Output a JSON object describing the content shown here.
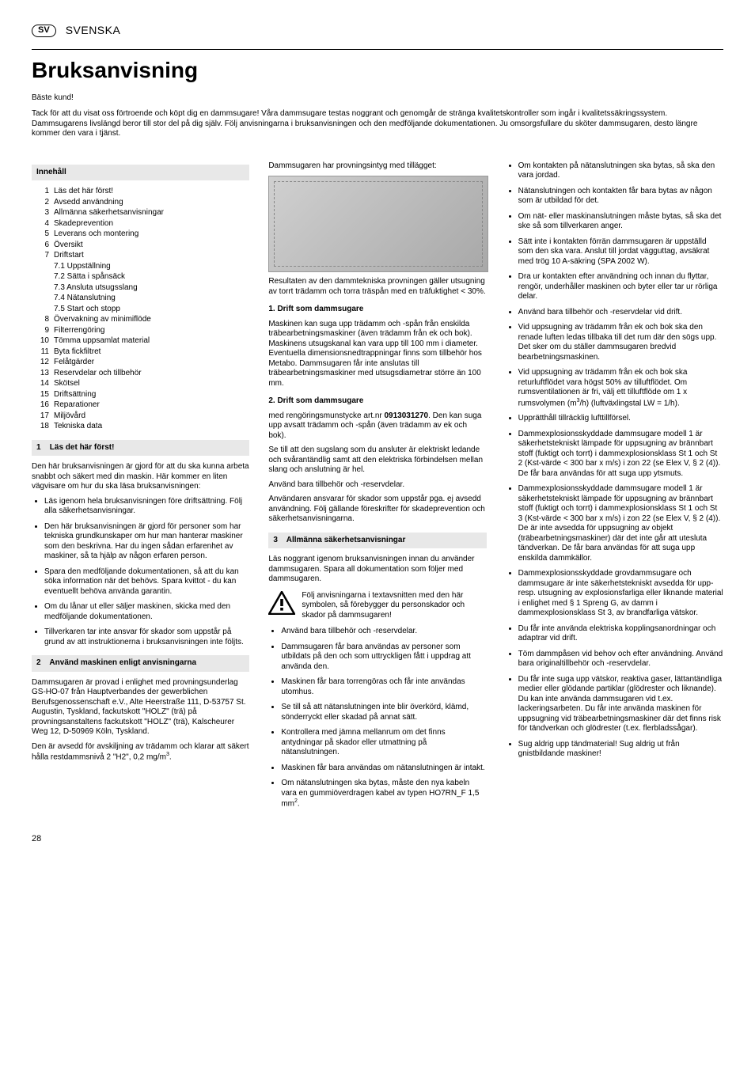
{
  "lang_code": "SV",
  "lang_label": "SVENSKA",
  "title": "Bruksanvisning",
  "greeting": "Bäste kund!",
  "intro": "Tack för att du visat oss förtroende och köpt dig en dammsugare! Våra dammsugare testas noggrant och genomgår de stränga kvalitetskontroller som ingår i kvalitetssäkringssystem. Dammsugarens livslängd beror till stor del på dig själv. Följ anvisningarna i bruksanvisningen och den medföljande dokumentationen. Ju omsorgsfullare du sköter dammsugaren, desto längre kommer den vara i tjänst.",
  "toc_header": "Innehåll",
  "toc": [
    {
      "n": "1",
      "l": "Läs det här först!"
    },
    {
      "n": "2",
      "l": "Avsedd användning"
    },
    {
      "n": "3",
      "l": "Allmänna säkerhetsanvisningar"
    },
    {
      "n": "4",
      "l": "Skadeprevention"
    },
    {
      "n": "5",
      "l": "Leverans och montering"
    },
    {
      "n": "6",
      "l": "Översikt"
    },
    {
      "n": "7",
      "l": "Driftstart"
    }
  ],
  "toc_sub7": [
    {
      "n": "7.1",
      "l": "Uppställning"
    },
    {
      "n": "7.2",
      "l": "Sätta i spånsäck"
    },
    {
      "n": "7.3",
      "l": "Ansluta utsugsslang"
    },
    {
      "n": "7.4",
      "l": "Nätanslutning"
    },
    {
      "n": "7.5",
      "l": "Start och stopp"
    }
  ],
  "toc2": [
    {
      "n": "8",
      "l": "Övervakning av minimiflöde"
    },
    {
      "n": "9",
      "l": "Filterrengöring"
    },
    {
      "n": "10",
      "l": "Tömma uppsamlat material"
    },
    {
      "n": "11",
      "l": "Byta fickfiltret"
    },
    {
      "n": "12",
      "l": "Felåtgärder"
    },
    {
      "n": "13",
      "l": "Reservdelar och tillbehör"
    },
    {
      "n": "14",
      "l": "Skötsel"
    },
    {
      "n": "15",
      "l": "Driftsättning"
    },
    {
      "n": "16",
      "l": "Reparationer"
    },
    {
      "n": "17",
      "l": "Miljövård"
    },
    {
      "n": "18",
      "l": "Tekniska data"
    }
  ],
  "s1_title": "Läs det här först!",
  "s1_p1": "Den här bruksanvisningen är gjord för att du ska kunna arbeta snabbt och säkert med din maskin. Här kommer en liten vägvisare om hur du ska läsa bruksanvisningen:",
  "s1_bullets": [
    "Läs igenom hela bruksanvisningen före driftsättning. Följ alla säkerhetsanvisningar.",
    "Den här bruksanvisningen är gjord för personer som har tekniska grundkunskaper om hur man hanterar maskiner som den beskrivna. Har du ingen sådan erfarenhet av maskiner, så ta hjälp av någon erfaren person.",
    "Spara den medföljande dokumentationen, så att du kan söka information när det behövs. Spara kvittot - du kan eventuellt behöva använda garantin.",
    "Om du lånar ut eller säljer maskinen, skicka med den medföljande dokumentationen.",
    "Tillverkaren tar inte ansvar för skador som uppstår på grund av att instruktionerna i bruksanvisningen inte följts."
  ],
  "s2_title": "Använd maskinen enligt anvisningarna",
  "s2_p1": "Dammsugaren är provad i enlighet med provningsunderlag GS-HO-07 från Hauptverbandes der gewerblichen Berufsgenossenschaft e.V., Alte Heerstraße 111, D-53757 St. Augustin, Tyskland, fackutskott \"HOLZ\" (trä) på provningsanstaltens fackutskott \"HOLZ\" (trä), Kalscheurer Weg 12, D-50969 Köln, Tyskland.",
  "s2_p2_a": "Den är avsedd för avskiljning av trädamm och klarar att säkert hålla restdammsnivå 2 \"H2\", 0,2 mg/m",
  "s2_p2_b": ".",
  "c2_p1": "Dammsugaren har provningsintyg med tillägget:",
  "c2_p2": "Resultaten av den dammtekniska provningen gäller utsugning av torrt trädamm och torra träspån med en träfuktighet < 30%.",
  "c2_h1": "1. Drift som dammsugare",
  "c2_p3": "Maskinen kan suga upp trädamm och -spån från enskilda träbearbetningsmaskiner (även trädamm från ek och bok). Maskinens utsugskanal kan vara upp till 100 mm i diameter. Eventuella dimensionsnedtrappningar finns som tillbehör hos Metabo. Dammsugaren får inte anslutas till träbearbetningsmaskiner med utsugsdiametrar större än 100 mm.",
  "c2_h2": "2. Drift som dammsugare",
  "c2_p4_a": "med rengöringsmunstycke art.nr ",
  "c2_p4_bold": "0913031270",
  "c2_p4_b": ". Den kan suga upp avsatt trädamm och -spån (även trädamm av ek och bok).",
  "c2_p5": "Se till att den sugslang som du ansluter är elektriskt ledande och svårantändlig samt att den elektriska förbindelsen mellan slang och anslutning är hel.",
  "c2_p6": "Använd bara tillbehör och -reservdelar.",
  "c2_p7": "Användaren ansvarar för skador som uppstår pga. ej avsedd användning. Följ gällande föreskrifter för skadeprevention och säkerhetsanvisningarna.",
  "s3_title": "Allmänna säkerhetsanvisningar",
  "s3_p1": "Läs noggrant igenom bruksanvisningen innan du använder dammsugaren. Spara all dokumentation som följer med dammsugaren.",
  "s3_warn": "Följ anvisningarna i textavsnitten med den här symbolen, så förebygger du personskador och skador på dammsugaren!",
  "s3_bullets1": [
    "Använd bara tillbehör och -reservdelar.",
    "Dammsugaren får bara användas av personer som utbildats på den och som uttryckligen fått i uppdrag att använda den.",
    "Maskinen får bara torrengöras och får inte användas utomhus.",
    "Se till så att nätanslutningen inte blir överkörd, klämd, sönderryckt eller skadad på annat sätt.",
    "Kontrollera med jämna mellanrum om det finns antydningar på skador eller utmattning på nätanslutningen.",
    "Maskinen får bara användas om nätanslutningen är intakt."
  ],
  "s3_b_last_a": "Om nätanslutningen ska bytas, måste den nya kabeln vara en gummiöverdragen kabel av typen HO7RN_F 1,5 mm",
  "s3_b_last_b": ".",
  "c3_bullets": [
    "Om kontakten på nätanslutningen ska bytas, så ska den vara jordad.",
    "Nätanslutningen och kontakten får bara bytas av någon som är utbildad för det.",
    "Om nät- eller maskinanslutningen måste bytas, så ska det ske så som tillverkaren anger.",
    "Sätt inte i kontakten förrän dammsugaren är uppställd som den ska vara. Anslut till jordat vägguttag, avsäkrat med trög 10 A-säkring (SPA 2002 W).",
    "Dra ur kontakten efter användning och innan du flyttar, rengör, underhåller maskinen och byter eller tar ur rörliga delar.",
    "Använd bara tillbehör och -reservdelar vid drift.",
    "Vid uppsugning av trädamm från ek och bok ska den renade luften ledas tillbaka till det rum där den sögs upp. Det sker om du ställer dammsugaren bredvid bearbetningsmaskinen."
  ],
  "c3_b_vid_a": "Vid uppsugning av trädamm från ek och bok ska returluftflödet vara högst 50% av tilluftflödet. Om rumsventilationen är fri, välj ett tilluftflöde om 1 x rumsvolymen (m",
  "c3_b_vid_b": "/h) (luftväxlingstal LW = 1/h).",
  "c3_bullets2": [
    "Upprätthåll tillräcklig lufttillförsel.",
    "Dammexplosionsskyddade dammsugare modell 1 är säkerhetstekniskt lämpade för uppsugning av brännbart stoff (fuktigt och torrt) i dammexplosionsklass St 1 och St 2 (Kst-värde < 300 bar x m/s) i zon 22 (se Elex V, § 2 (4)). De får bara användas för att suga upp ytsmuts.",
    "Dammexplosionsskyddade dammsugare modell 1 är säkerhetstekniskt lämpade för uppsugning av brännbart stoff (fuktigt och torrt) i dammexplosionsklass St 1 och St 3 (Kst-värde < 300 bar x m/s) i zon 22 (se Elex V, § 2 (4)). De är inte avsedda för uppsugning av objekt (träbearbetningsmaskiner) där det inte går att utesluta tändverkan. De får bara användas för att suga upp enskilda dammkällor.",
    "Dammexplosionsskyddade grovdammsugare och dammsugare är inte säkerhetstekniskt avsedda för upp- resp. utsugning av explosionsfarliga eller liknande material i enlighet med § 1 Spreng G, av damm i dammexplosionsklass St 3, av brandfarliga vätskor.",
    "Du får inte använda elektriska kopplingsanordningar och adaptrar vid drift.",
    "Töm dammpåsen vid behov och efter användning. Använd bara originaltillbehör och -reservdelar.",
    "Du får inte suga upp vätskor, reaktiva gaser, lättantändliga medier eller glödande partiklar (glödrester och liknande). Du kan inte använda dammsugaren vid t.ex. lackeringsarbeten. Du får inte använda maskinen för uppsugning vid träbearbetningsmaskiner där det finns risk för tändverkan och glödrester (t.ex. flerbladssågar).",
    "Sug aldrig upp tändmaterial! Sug aldrig ut från gnistbildande maskiner!"
  ],
  "page_number": "28"
}
